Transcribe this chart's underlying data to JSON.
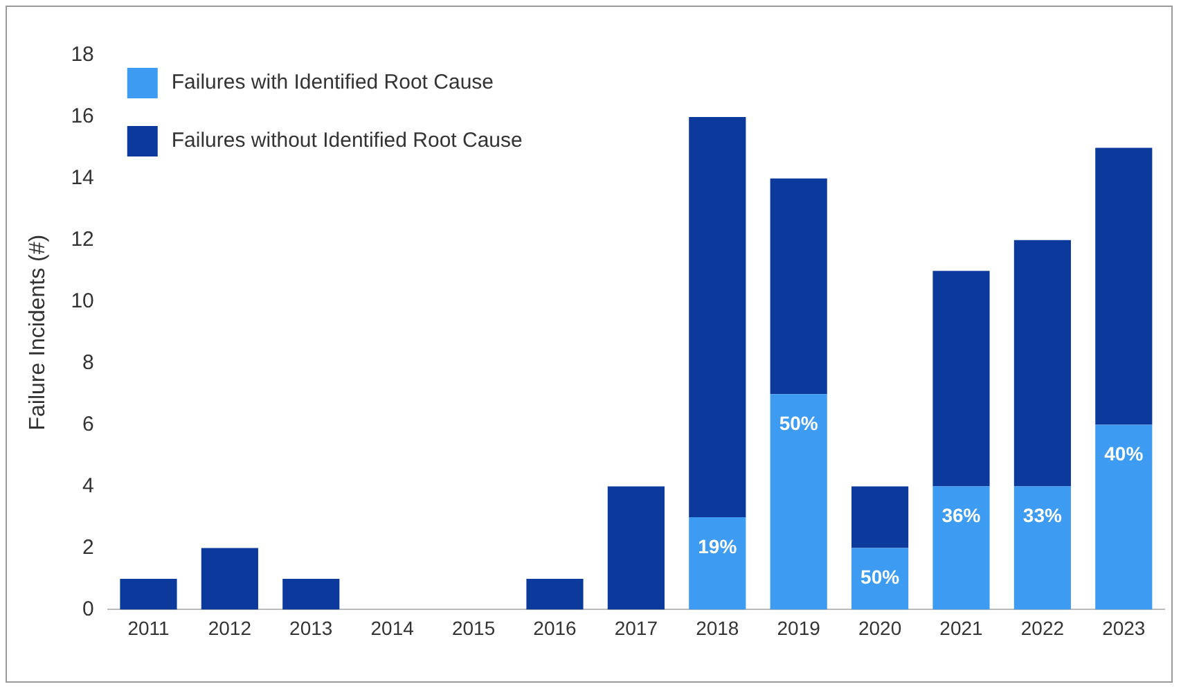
{
  "chart_data": {
    "type": "bar",
    "ylabel": "Failure Incidents (#)",
    "stacked": true,
    "legend": "top left",
    "grid": false,
    "categories": [
      "2011",
      "2012",
      "2013",
      "2014",
      "2015",
      "2016",
      "2017",
      "2018",
      "2019",
      "2020",
      "2021",
      "2022",
      "2023"
    ],
    "annotations": [
      {
        "text": "19%",
        "x": "2018",
        "y": 3
      },
      {
        "text": "50%",
        "x": "2019",
        "y": 7
      },
      {
        "text": "50%",
        "x": "2020",
        "y": 2
      },
      {
        "text": "36%",
        "x": "2021",
        "y": 4
      },
      {
        "text": "33%",
        "x": "2022",
        "y": 4
      },
      {
        "text": "40%",
        "x": "2023",
        "y": 6
      }
    ],
    "ylim": [
      0,
      18
    ],
    "yticks": [
      0,
      2,
      4,
      6,
      8,
      10,
      12,
      14,
      16,
      18
    ],
    "series": [
      {
        "name": "Failures with Identified Root Cause",
        "color": "#3d9cf2",
        "values": [
          0,
          0,
          0,
          0,
          0,
          0,
          0,
          3,
          7,
          2,
          4,
          4,
          6
        ]
      },
      {
        "name": "Failures without Identified Root Cause",
        "color": "#0b3a9c",
        "values": [
          1,
          2,
          1,
          0,
          0,
          1,
          4,
          13,
          7,
          2,
          7,
          8,
          9
        ]
      }
    ]
  }
}
